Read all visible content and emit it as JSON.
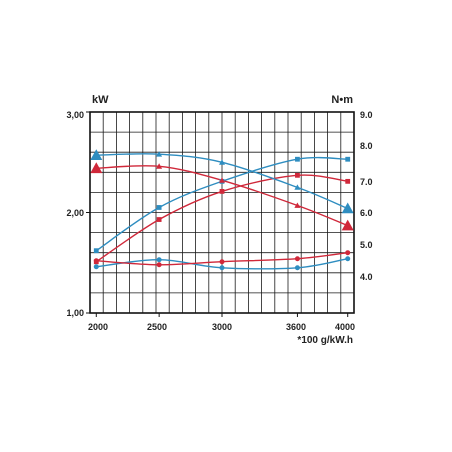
{
  "chart_data": {
    "type": "line",
    "title": "",
    "x": [
      2000,
      2500,
      3000,
      3600,
      4000
    ],
    "x_ticks": [
      "2000",
      "2500",
      "3000",
      "3600",
      "4000"
    ],
    "xlim": [
      1950,
      4050
    ],
    "left_axis": {
      "label": "kW",
      "ticks": [
        "1,00",
        "2,00",
        "3,00"
      ],
      "ylim": [
        1.0,
        3.0
      ]
    },
    "right_axis": {
      "label": "N•m",
      "ticks": [
        "4.0",
        "5.0",
        "6.0",
        "7.0",
        "8.0",
        "9.0"
      ],
      "ylim": [
        3.0,
        9.0
      ]
    },
    "bottom_note": "*100 g/kW.h",
    "grid": true,
    "series": [
      {
        "key": "power_blue",
        "axis": "left",
        "color": "#2e8dc0",
        "marker": "square",
        "values": [
          1.62,
          2.05,
          2.31,
          2.53,
          2.53
        ]
      },
      {
        "key": "power_red",
        "axis": "left",
        "color": "#d0283a",
        "marker": "square",
        "values": [
          1.51,
          1.93,
          2.21,
          2.37,
          2.31
        ]
      },
      {
        "key": "torque_blue",
        "axis": "left",
        "color": "#2e8dc0",
        "marker": "triangle",
        "values": [
          2.57,
          2.58,
          2.5,
          2.25,
          2.04
        ]
      },
      {
        "key": "torque_red",
        "axis": "left",
        "color": "#d0283a",
        "marker": "triangle",
        "values": [
          2.44,
          2.46,
          2.32,
          2.07,
          1.87
        ]
      },
      {
        "key": "consumption_blue",
        "axis": "left",
        "color": "#2e8dc0",
        "marker": "circle",
        "values": [
          1.46,
          1.53,
          1.45,
          1.45,
          1.54
        ]
      },
      {
        "key": "consumption_red",
        "axis": "left",
        "color": "#d0283a",
        "marker": "circle",
        "values": [
          1.52,
          1.48,
          1.51,
          1.54,
          1.6
        ]
      }
    ]
  }
}
